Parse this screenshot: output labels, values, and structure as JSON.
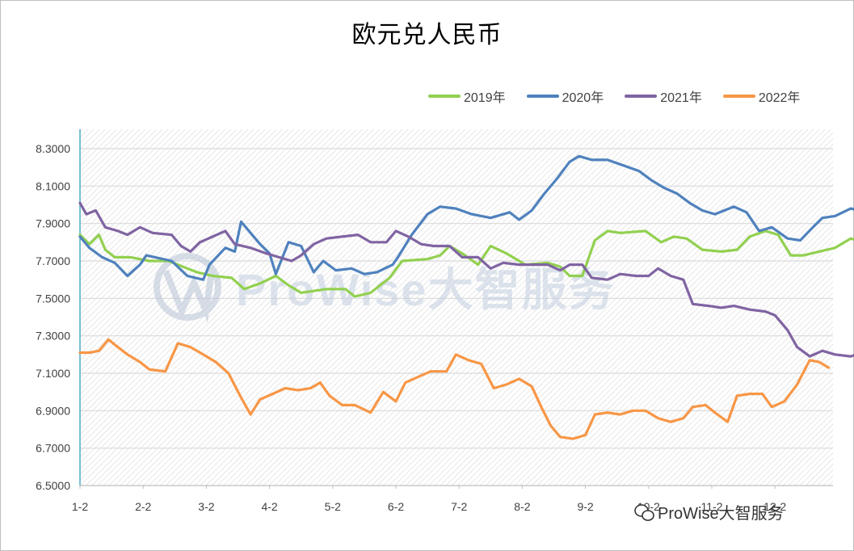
{
  "chart_data": {
    "type": "line",
    "title": "欧元兑人民币",
    "xlabel": "",
    "ylabel": "",
    "ylim": [
      6.5,
      8.3
    ],
    "y_ticks": [
      "6.5000",
      "6.7000",
      "6.9000",
      "7.1000",
      "7.3000",
      "7.5000",
      "7.7000",
      "7.9000",
      "8.1000",
      "8.3000"
    ],
    "x_ticks": [
      "1-2",
      "2-2",
      "3-2",
      "4-2",
      "5-2",
      "6-2",
      "7-2",
      "8-2",
      "9-2",
      "10-2",
      "11-2",
      "12-2"
    ],
    "grid": true,
    "legend_position": "top-right",
    "series": [
      {
        "name": "2019年",
        "color": "#92d050",
        "points": [
          [
            0,
            7.84
          ],
          [
            0.15,
            7.79
          ],
          [
            0.3,
            7.84
          ],
          [
            0.4,
            7.76
          ],
          [
            0.55,
            7.72
          ],
          [
            0.8,
            7.72
          ],
          [
            1.1,
            7.7
          ],
          [
            1.4,
            7.7
          ],
          [
            1.55,
            7.68
          ],
          [
            1.7,
            7.66
          ],
          [
            1.85,
            7.64
          ],
          [
            2.1,
            7.62
          ],
          [
            2.4,
            7.61
          ],
          [
            2.6,
            7.55
          ],
          [
            2.85,
            7.58
          ],
          [
            3.1,
            7.62
          ],
          [
            3.3,
            7.57
          ],
          [
            3.5,
            7.53
          ],
          [
            3.9,
            7.55
          ],
          [
            4.2,
            7.55
          ],
          [
            4.35,
            7.51
          ],
          [
            4.6,
            7.53
          ],
          [
            4.9,
            7.61
          ],
          [
            5.1,
            7.7
          ],
          [
            5.5,
            7.71
          ],
          [
            5.7,
            7.73
          ],
          [
            5.85,
            7.78
          ],
          [
            6.05,
            7.74
          ],
          [
            6.3,
            7.68
          ],
          [
            6.5,
            7.78
          ],
          [
            6.75,
            7.74
          ],
          [
            7.05,
            7.68
          ],
          [
            7.4,
            7.69
          ],
          [
            7.6,
            7.67
          ],
          [
            7.75,
            7.62
          ],
          [
            7.95,
            7.62
          ],
          [
            8.15,
            7.81
          ],
          [
            8.35,
            7.86
          ],
          [
            8.55,
            7.85
          ],
          [
            8.95,
            7.86
          ],
          [
            9.2,
            7.8
          ],
          [
            9.4,
            7.83
          ],
          [
            9.6,
            7.82
          ],
          [
            9.85,
            7.76
          ],
          [
            10.15,
            7.75
          ],
          [
            10.4,
            7.76
          ],
          [
            10.6,
            7.83
          ],
          [
            10.85,
            7.86
          ],
          [
            11.05,
            7.84
          ],
          [
            11.25,
            7.73
          ],
          [
            11.45,
            7.73
          ],
          [
            11.7,
            7.75
          ],
          [
            11.95,
            7.77
          ],
          [
            12.2,
            7.82
          ],
          [
            12.5,
            7.79
          ],
          [
            12.75,
            7.76
          ],
          [
            12.9,
            7.77
          ]
        ]
      },
      {
        "name": "2020年",
        "color": "#4f81bd",
        "points": [
          [
            0,
            7.83
          ],
          [
            0.15,
            7.77
          ],
          [
            0.35,
            7.72
          ],
          [
            0.55,
            7.69
          ],
          [
            0.75,
            7.62
          ],
          [
            0.95,
            7.68
          ],
          [
            1.05,
            7.73
          ],
          [
            1.45,
            7.7
          ],
          [
            1.7,
            7.62
          ],
          [
            1.95,
            7.6
          ],
          [
            2.05,
            7.68
          ],
          [
            2.3,
            7.77
          ],
          [
            2.45,
            7.75
          ],
          [
            2.55,
            7.91
          ],
          [
            2.7,
            7.85
          ],
          [
            2.85,
            7.79
          ],
          [
            3.0,
            7.74
          ],
          [
            3.1,
            7.63
          ],
          [
            3.3,
            7.8
          ],
          [
            3.5,
            7.78
          ],
          [
            3.7,
            7.64
          ],
          [
            3.85,
            7.7
          ],
          [
            4.05,
            7.65
          ],
          [
            4.3,
            7.66
          ],
          [
            4.5,
            7.63
          ],
          [
            4.7,
            7.64
          ],
          [
            4.95,
            7.68
          ],
          [
            5.05,
            7.73
          ],
          [
            5.25,
            7.84
          ],
          [
            5.5,
            7.95
          ],
          [
            5.7,
            7.99
          ],
          [
            5.95,
            7.98
          ],
          [
            6.2,
            7.95
          ],
          [
            6.5,
            7.93
          ],
          [
            6.8,
            7.96
          ],
          [
            6.95,
            7.92
          ],
          [
            7.15,
            7.97
          ],
          [
            7.35,
            8.06
          ],
          [
            7.55,
            8.14
          ],
          [
            7.75,
            8.23
          ],
          [
            7.9,
            8.26
          ],
          [
            8.1,
            8.24
          ],
          [
            8.35,
            8.24
          ],
          [
            8.6,
            8.21
          ],
          [
            8.85,
            8.18
          ],
          [
            9.05,
            8.13
          ],
          [
            9.25,
            8.09
          ],
          [
            9.45,
            8.06
          ],
          [
            9.65,
            8.01
          ],
          [
            9.85,
            7.97
          ],
          [
            10.05,
            7.95
          ],
          [
            10.35,
            7.99
          ],
          [
            10.55,
            7.96
          ],
          [
            10.75,
            7.86
          ],
          [
            10.95,
            7.88
          ],
          [
            11.2,
            7.82
          ],
          [
            11.4,
            7.81
          ],
          [
            11.6,
            7.88
          ],
          [
            11.75,
            7.93
          ],
          [
            11.95,
            7.94
          ],
          [
            12.2,
            7.98
          ],
          [
            12.45,
            7.96
          ],
          [
            12.65,
            8.0
          ],
          [
            12.85,
            8.02
          ]
        ]
      },
      {
        "name": "2021年",
        "color": "#8064a2",
        "points": [
          [
            0,
            8.01
          ],
          [
            0.1,
            7.95
          ],
          [
            0.25,
            7.97
          ],
          [
            0.4,
            7.88
          ],
          [
            0.6,
            7.86
          ],
          [
            0.75,
            7.84
          ],
          [
            0.95,
            7.88
          ],
          [
            1.15,
            7.85
          ],
          [
            1.45,
            7.84
          ],
          [
            1.6,
            7.78
          ],
          [
            1.75,
            7.75
          ],
          [
            1.9,
            7.8
          ],
          [
            2.1,
            7.83
          ],
          [
            2.3,
            7.86
          ],
          [
            2.45,
            7.79
          ],
          [
            2.7,
            7.77
          ],
          [
            2.95,
            7.74
          ],
          [
            3.15,
            7.72
          ],
          [
            3.35,
            7.7
          ],
          [
            3.5,
            7.73
          ],
          [
            3.7,
            7.79
          ],
          [
            3.9,
            7.82
          ],
          [
            4.15,
            7.83
          ],
          [
            4.4,
            7.84
          ],
          [
            4.6,
            7.8
          ],
          [
            4.85,
            7.8
          ],
          [
            5.0,
            7.86
          ],
          [
            5.2,
            7.83
          ],
          [
            5.4,
            7.79
          ],
          [
            5.6,
            7.78
          ],
          [
            5.85,
            7.78
          ],
          [
            6.05,
            7.72
          ],
          [
            6.3,
            7.72
          ],
          [
            6.5,
            7.66
          ],
          [
            6.7,
            7.69
          ],
          [
            6.95,
            7.68
          ],
          [
            7.15,
            7.68
          ],
          [
            7.4,
            7.68
          ],
          [
            7.6,
            7.65
          ],
          [
            7.75,
            7.68
          ],
          [
            7.95,
            7.68
          ],
          [
            8.1,
            7.61
          ],
          [
            8.35,
            7.6
          ],
          [
            8.55,
            7.63
          ],
          [
            8.8,
            7.62
          ],
          [
            9.0,
            7.62
          ],
          [
            9.15,
            7.66
          ],
          [
            9.35,
            7.62
          ],
          [
            9.55,
            7.6
          ],
          [
            9.7,
            7.47
          ],
          [
            9.95,
            7.46
          ],
          [
            10.15,
            7.45
          ],
          [
            10.35,
            7.46
          ],
          [
            10.6,
            7.44
          ],
          [
            10.85,
            7.43
          ],
          [
            11.0,
            7.41
          ],
          [
            11.2,
            7.33
          ],
          [
            11.35,
            7.24
          ],
          [
            11.55,
            7.19
          ],
          [
            11.75,
            7.22
          ],
          [
            11.95,
            7.2
          ],
          [
            12.2,
            7.19
          ],
          [
            12.45,
            7.22
          ],
          [
            12.7,
            7.21
          ],
          [
            12.85,
            7.22
          ]
        ]
      },
      {
        "name": "2022年",
        "color": "#f79646",
        "points": [
          [
            0,
            7.21
          ],
          [
            0.15,
            7.21
          ],
          [
            0.3,
            7.22
          ],
          [
            0.45,
            7.28
          ],
          [
            0.6,
            7.24
          ],
          [
            0.75,
            7.2
          ],
          [
            0.95,
            7.16
          ],
          [
            1.1,
            7.12
          ],
          [
            1.35,
            7.11
          ],
          [
            1.55,
            7.26
          ],
          [
            1.75,
            7.24
          ],
          [
            1.95,
            7.2
          ],
          [
            2.15,
            7.16
          ],
          [
            2.35,
            7.1
          ],
          [
            2.55,
            6.97
          ],
          [
            2.7,
            6.88
          ],
          [
            2.85,
            6.96
          ],
          [
            3.05,
            6.99
          ],
          [
            3.25,
            7.02
          ],
          [
            3.45,
            7.01
          ],
          [
            3.65,
            7.02
          ],
          [
            3.8,
            7.05
          ],
          [
            3.95,
            6.98
          ],
          [
            4.15,
            6.93
          ],
          [
            4.35,
            6.93
          ],
          [
            4.6,
            6.89
          ],
          [
            4.8,
            7.0
          ],
          [
            5.0,
            6.95
          ],
          [
            5.15,
            7.05
          ],
          [
            5.35,
            7.08
          ],
          [
            5.55,
            7.11
          ],
          [
            5.8,
            7.11
          ],
          [
            5.95,
            7.2
          ],
          [
            6.15,
            7.17
          ],
          [
            6.35,
            7.15
          ],
          [
            6.55,
            7.02
          ],
          [
            6.75,
            7.04
          ],
          [
            6.95,
            7.07
          ],
          [
            7.15,
            7.03
          ],
          [
            7.3,
            6.92
          ],
          [
            7.45,
            6.82
          ],
          [
            7.6,
            6.76
          ],
          [
            7.8,
            6.75
          ],
          [
            8.0,
            6.77
          ],
          [
            8.15,
            6.88
          ],
          [
            8.35,
            6.89
          ],
          [
            8.55,
            6.88
          ],
          [
            8.75,
            6.9
          ],
          [
            8.95,
            6.9
          ],
          [
            9.15,
            6.86
          ],
          [
            9.35,
            6.84
          ],
          [
            9.55,
            6.86
          ],
          [
            9.7,
            6.92
          ],
          [
            9.9,
            6.93
          ],
          [
            10.05,
            6.89
          ],
          [
            10.25,
            6.84
          ],
          [
            10.4,
            6.98
          ],
          [
            10.6,
            6.99
          ],
          [
            10.8,
            6.99
          ],
          [
            10.95,
            6.92
          ],
          [
            11.15,
            6.95
          ],
          [
            11.35,
            7.04
          ],
          [
            11.55,
            7.17
          ],
          [
            11.7,
            7.16
          ],
          [
            11.85,
            7.13
          ]
        ]
      }
    ]
  },
  "watermark": {
    "center_text": "ProWise大智服务",
    "corner_text": "ProWise大智服务"
  }
}
